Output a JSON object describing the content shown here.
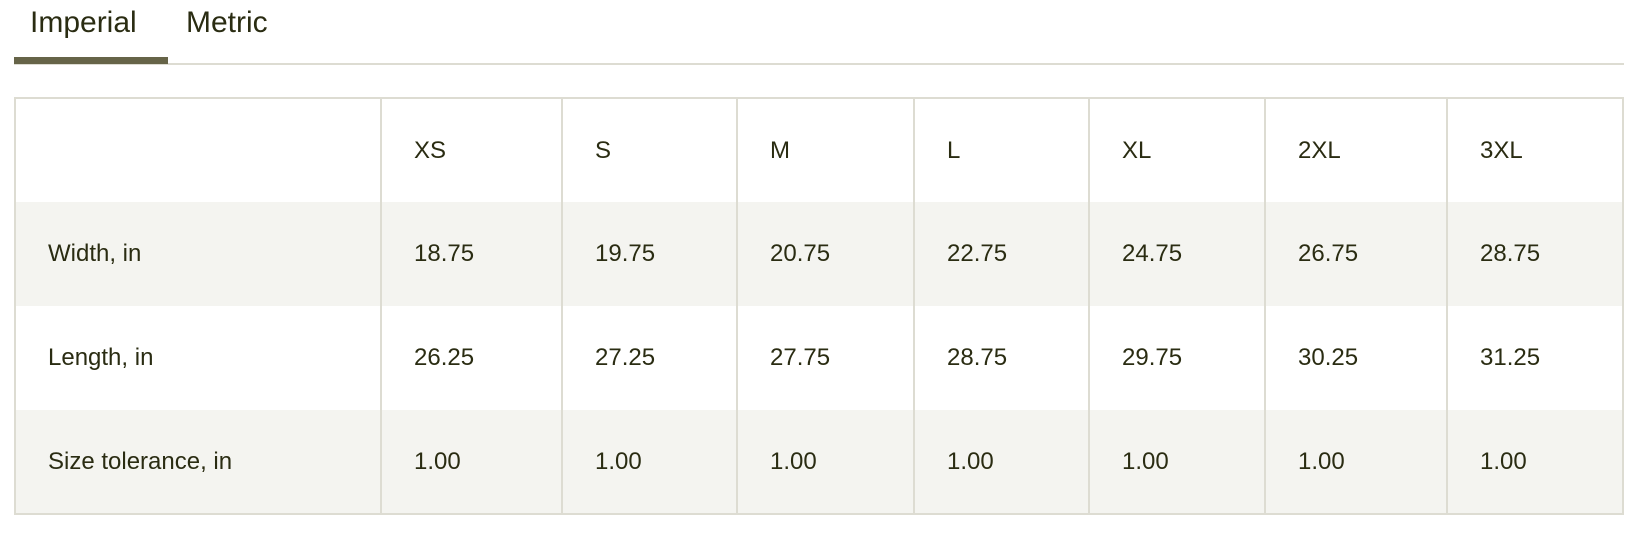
{
  "tabs": [
    {
      "label": "Imperial",
      "active": true
    },
    {
      "label": "Metric",
      "active": false
    }
  ],
  "colors": {
    "active_tab_underline": "#666448",
    "stripe": "#f4f4f0",
    "border": "#dddcd2",
    "text": "#2a2c12"
  },
  "table": {
    "headers": [
      "",
      "XS",
      "S",
      "M",
      "L",
      "XL",
      "2XL",
      "3XL"
    ],
    "rows": [
      {
        "label": "Width, in",
        "values": [
          "18.75",
          "19.75",
          "20.75",
          "22.75",
          "24.75",
          "26.75",
          "28.75"
        ]
      },
      {
        "label": "Length, in",
        "values": [
          "26.25",
          "27.25",
          "27.75",
          "28.75",
          "29.75",
          "30.25",
          "31.25"
        ]
      },
      {
        "label": "Size tolerance, in",
        "values": [
          "1.00",
          "1.00",
          "1.00",
          "1.00",
          "1.00",
          "1.00",
          "1.00"
        ]
      }
    ]
  }
}
